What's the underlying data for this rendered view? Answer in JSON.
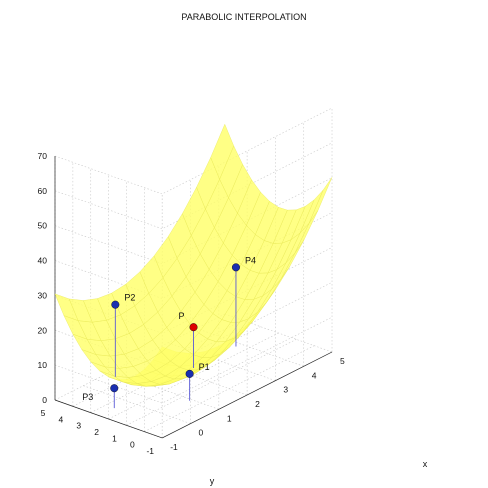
{
  "chart_data": {
    "type": "surface",
    "title": "PARABOLIC INTERPOLATION",
    "xlabel": "x",
    "ylabel": "y",
    "zlabel": "",
    "x_ticks": [
      -1,
      0,
      1,
      2,
      3,
      4,
      5
    ],
    "y_ticks": [
      5,
      4,
      3,
      2,
      1,
      0,
      -1
    ],
    "z_ticks": [
      0,
      10,
      20,
      30,
      40,
      50,
      60,
      70
    ],
    "xlim": [
      -1,
      5
    ],
    "ylim": [
      -1,
      5
    ],
    "zlim": [
      0,
      70
    ],
    "grid": true,
    "surface_color": "#ffff66",
    "points": [
      {
        "name": "P1",
        "x": 0.6,
        "y": 0.0,
        "z": 10,
        "color": "#1a2fb0",
        "label_color": "#111111"
      },
      {
        "name": "P2",
        "x": 0.5,
        "y": 4.0,
        "z": 23,
        "color": "#1a2fb0",
        "label_color": "#111111"
      },
      {
        "name": "P3",
        "x": -0.8,
        "y": 2.0,
        "z": 8,
        "color": "#1a2fb0",
        "label_color": "#111111"
      },
      {
        "name": "P4",
        "x": 3.5,
        "y": 2.0,
        "z": 25,
        "color": "#1a2fb0",
        "label_color": "#8a8a2a"
      },
      {
        "name": "P",
        "x": 2.0,
        "y": 2.0,
        "z": 14,
        "color": "#dd0000",
        "label_color": "#111111"
      }
    ]
  }
}
